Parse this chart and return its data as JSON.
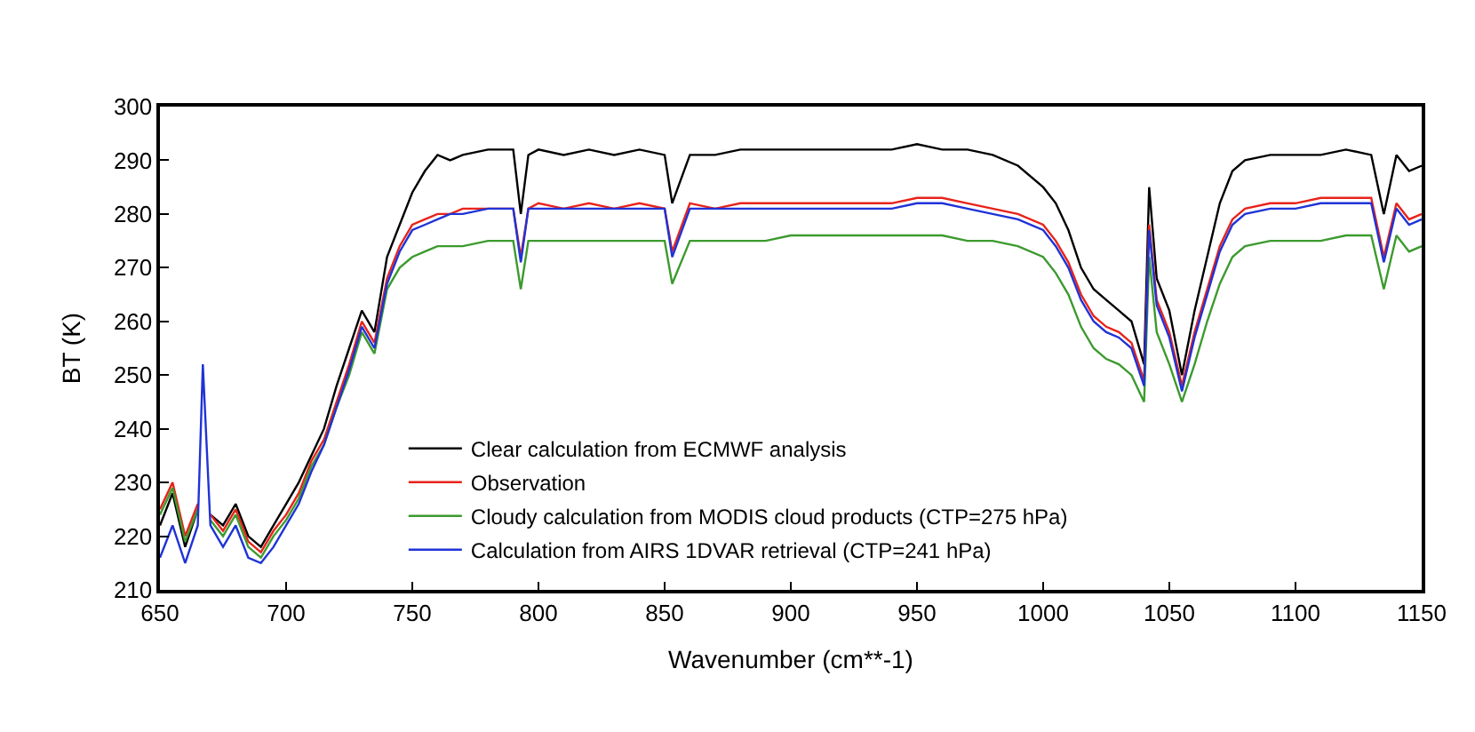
{
  "chart_data": {
    "type": "line",
    "xlabel": "Wavenumber (cm**-1)",
    "ylabel": "BT (K)",
    "xlim": [
      650,
      1150
    ],
    "ylim": [
      210,
      300
    ],
    "xticks": [
      650,
      700,
      750,
      800,
      850,
      900,
      950,
      1000,
      1050,
      1100,
      1150
    ],
    "yticks": [
      210,
      220,
      230,
      240,
      250,
      260,
      270,
      280,
      290,
      300
    ],
    "legend": "bottom",
    "line_style": "solid",
    "marker": "none",
    "x": [
      650,
      655,
      660,
      665,
      667,
      670,
      675,
      680,
      685,
      690,
      695,
      700,
      705,
      710,
      715,
      720,
      725,
      730,
      735,
      740,
      745,
      750,
      755,
      760,
      765,
      770,
      780,
      790,
      793,
      796,
      800,
      810,
      820,
      830,
      840,
      850,
      853,
      860,
      870,
      880,
      890,
      900,
      910,
      920,
      930,
      940,
      950,
      960,
      970,
      980,
      990,
      1000,
      1005,
      1010,
      1015,
      1020,
      1025,
      1030,
      1035,
      1040,
      1042,
      1045,
      1050,
      1055,
      1060,
      1065,
      1070,
      1075,
      1080,
      1090,
      1100,
      1110,
      1120,
      1130,
      1135,
      1140,
      1145,
      1150
    ],
    "series": [
      {
        "name": "Clear calculation from ECMWF analysis",
        "color": "#000000",
        "values": [
          222,
          228,
          218,
          225,
          null,
          224,
          222,
          226,
          220,
          218,
          222,
          226,
          230,
          235,
          240,
          248,
          255,
          262,
          258,
          272,
          278,
          284,
          288,
          291,
          290,
          291,
          292,
          292,
          280,
          291,
          292,
          291,
          292,
          291,
          292,
          291,
          282,
          291,
          291,
          292,
          292,
          292,
          292,
          292,
          292,
          292,
          293,
          292,
          292,
          291,
          289,
          285,
          282,
          277,
          270,
          266,
          264,
          262,
          260,
          252,
          285,
          268,
          262,
          250,
          262,
          272,
          282,
          288,
          290,
          291,
          291,
          291,
          292,
          291,
          280,
          291,
          288,
          289
        ]
      },
      {
        "name": "Observation",
        "color": "#e8231a",
        "values": [
          225,
          230,
          220,
          226,
          null,
          224,
          221,
          225,
          219,
          217,
          221,
          224,
          228,
          234,
          238,
          245,
          252,
          260,
          256,
          268,
          274,
          278,
          279,
          280,
          280,
          281,
          281,
          281,
          272,
          281,
          282,
          281,
          282,
          281,
          282,
          281,
          273,
          282,
          281,
          282,
          282,
          282,
          282,
          282,
          282,
          282,
          283,
          283,
          282,
          281,
          280,
          278,
          275,
          271,
          265,
          261,
          259,
          258,
          256,
          249,
          278,
          264,
          258,
          248,
          258,
          266,
          274,
          279,
          281,
          282,
          282,
          283,
          283,
          283,
          272,
          282,
          279,
          280
        ]
      },
      {
        "name": "Cloudy calculation from MODIS cloud products (CTP=275 hPa)",
        "color": "#3c9a2e",
        "values": [
          224,
          229,
          219,
          225,
          null,
          223,
          220,
          224,
          218,
          216,
          220,
          223,
          227,
          233,
          237,
          244,
          250,
          258,
          254,
          266,
          270,
          272,
          273,
          274,
          274,
          274,
          275,
          275,
          266,
          275,
          275,
          275,
          275,
          275,
          275,
          275,
          267,
          275,
          275,
          275,
          275,
          276,
          276,
          276,
          276,
          276,
          276,
          276,
          275,
          275,
          274,
          272,
          269,
          265,
          259,
          255,
          253,
          252,
          250,
          245,
          272,
          258,
          252,
          245,
          252,
          260,
          267,
          272,
          274,
          275,
          275,
          275,
          276,
          276,
          266,
          276,
          273,
          274
        ]
      },
      {
        "name": "Calculation from AIRS 1DVAR retrieval (CTP=241 hPa)",
        "color": "#1f33d6",
        "values": [
          216,
          222,
          215,
          222,
          252,
          222,
          218,
          222,
          216,
          215,
          218,
          222,
          226,
          232,
          237,
          244,
          251,
          259,
          255,
          267,
          273,
          277,
          278,
          279,
          280,
          280,
          281,
          281,
          271,
          281,
          281,
          281,
          281,
          281,
          281,
          281,
          272,
          281,
          281,
          281,
          281,
          281,
          281,
          281,
          281,
          281,
          282,
          282,
          281,
          280,
          279,
          277,
          274,
          270,
          264,
          260,
          258,
          257,
          255,
          248,
          277,
          263,
          257,
          247,
          257,
          265,
          273,
          278,
          280,
          281,
          281,
          282,
          282,
          282,
          271,
          281,
          278,
          279
        ]
      }
    ]
  }
}
